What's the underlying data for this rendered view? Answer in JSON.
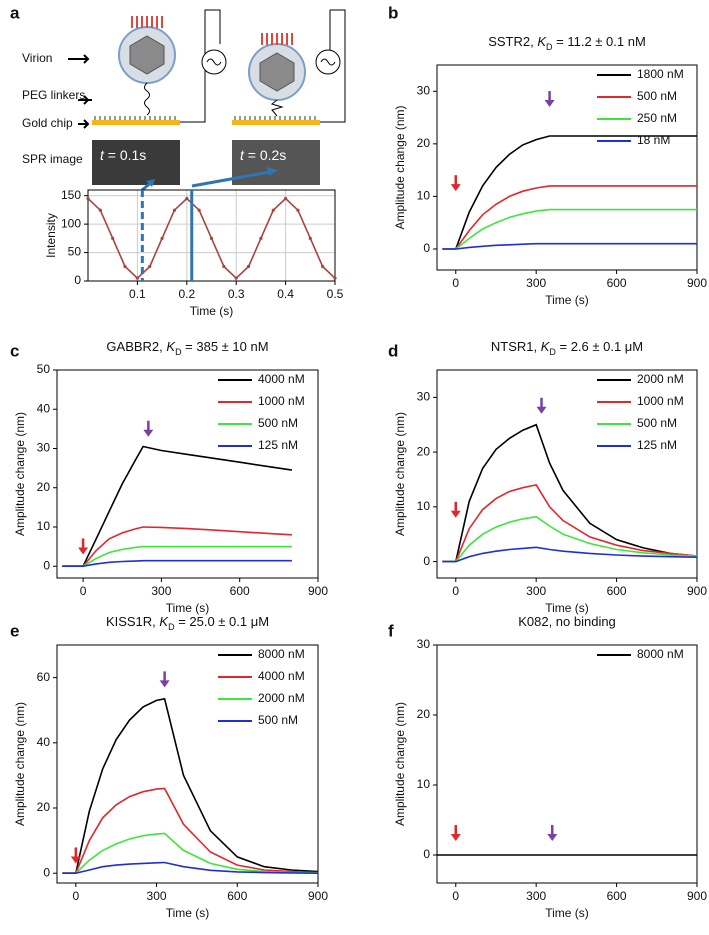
{
  "diagram": {
    "panel": "a",
    "labels": [
      "Virion",
      "PEG linkers",
      "Gold chip",
      "SPR image"
    ],
    "image_labels": [
      [
        "t",
        " = 0.1s"
      ],
      [
        "t",
        " = 0.2s"
      ]
    ]
  },
  "chart_data": [
    {
      "type": "line",
      "xlabel": "Time (s)",
      "ylabel": "Intensity",
      "xlim": [
        0,
        0.5
      ],
      "ylim": [
        0,
        160
      ],
      "xticks": [
        0.1,
        0.2,
        0.3,
        0.4,
        0.5
      ],
      "yticks": [
        0,
        50,
        100,
        150
      ],
      "grid": true,
      "point_markers": true,
      "x": [
        0,
        0.025,
        0.05,
        0.075,
        0.1,
        0.125,
        0.15,
        0.175,
        0.2,
        0.225,
        0.25,
        0.275,
        0.3,
        0.325,
        0.35,
        0.375,
        0.4,
        0.425,
        0.45,
        0.475,
        0.5
      ],
      "series": [
        {
          "color": "#a8443f",
          "values": [
            145,
            124.5,
            75,
            25.5,
            5,
            25.5,
            75,
            124.5,
            145,
            124.5,
            75,
            25.5,
            5,
            25.5,
            75,
            124.5,
            145,
            124.5,
            75,
            25.5,
            5
          ]
        }
      ],
      "markers": [
        {
          "x": 0.11,
          "style": "dashed",
          "color": "#2e75b6"
        },
        {
          "x": 0.21,
          "style": "solid",
          "color": "#2e75b6"
        }
      ]
    },
    {
      "type": "line",
      "panel": "b",
      "title": [
        "SSTR2, ",
        "K",
        "D",
        " = 11.2 ± 0.1 nM"
      ],
      "xlabel": "Time (s)",
      "ylabel": "Amplitude change (nm)",
      "xlim": [
        -70,
        900
      ],
      "ylim": [
        -4,
        35
      ],
      "xticks": [
        0,
        300,
        600,
        900
      ],
      "yticks": [
        0,
        10,
        20,
        30
      ],
      "legend": "upper right",
      "x": [
        -50,
        0,
        50,
        100,
        150,
        200,
        250,
        300,
        350,
        400,
        500,
        600,
        700,
        800,
        900
      ],
      "series": [
        {
          "name": "1800 nM",
          "color": "#000000",
          "values": [
            0,
            0,
            7,
            12,
            15.5,
            18,
            19.8,
            20.8,
            21.5,
            21.5,
            21.5,
            21.5,
            21.5,
            21.5,
            21.5
          ]
        },
        {
          "name": "500 nM",
          "color": "#e3262b",
          "values": [
            0,
            0,
            3.5,
            6.5,
            8.5,
            10,
            11,
            11.6,
            12,
            12,
            12,
            12,
            12,
            12,
            12
          ]
        },
        {
          "name": "250 nM",
          "color": "#3ee63a",
          "values": [
            0,
            0,
            2,
            3.8,
            5,
            6,
            6.7,
            7.2,
            7.5,
            7.5,
            7.5,
            7.5,
            7.5,
            7.5,
            7.5
          ]
        },
        {
          "name": "18 nM",
          "color": "#1f2fd6",
          "values": [
            0,
            0,
            0.3,
            0.5,
            0.7,
            0.8,
            0.9,
            1,
            1,
            1,
            1,
            1,
            1,
            1,
            1
          ]
        }
      ],
      "markers": [
        {
          "x": 0,
          "y": 11,
          "color": "#e3262b"
        },
        {
          "x": 350,
          "y": 27,
          "color": "#7b3fa8"
        }
      ]
    },
    {
      "type": "line",
      "panel": "c",
      "title": [
        "GABBR2, ",
        "K",
        "D",
        " = 385  ± 10 nM"
      ],
      "xlabel": "Time (s)",
      "ylabel": "Amplitude change (nm)",
      "xlim": [
        -100,
        900
      ],
      "ylim": [
        -3,
        50
      ],
      "xticks": [
        0,
        300,
        600,
        900
      ],
      "yticks": [
        0,
        10,
        20,
        30,
        40,
        50
      ],
      "legend": "upper right",
      "x": [
        -80,
        0,
        50,
        100,
        150,
        200,
        230,
        300,
        400,
        500,
        600,
        700,
        800
      ],
      "series": [
        {
          "name": "4000 nM",
          "color": "#000000",
          "values": [
            0,
            0,
            7,
            14,
            21,
            27,
            30.5,
            29.5,
            28.5,
            27.5,
            26.5,
            25.5,
            24.5
          ]
        },
        {
          "name": "1000 nM",
          "color": "#e3262b",
          "values": [
            0,
            0,
            4,
            7,
            8.5,
            9.5,
            10,
            9.9,
            9.6,
            9.2,
            8.8,
            8.4,
            8
          ]
        },
        {
          "name": "500 nM",
          "color": "#3ee63a",
          "values": [
            0,
            0,
            2,
            3.5,
            4.3,
            4.8,
            5,
            5,
            5,
            5,
            5,
            5,
            5
          ]
        },
        {
          "name": "125 nM",
          "color": "#1f2fd6",
          "values": [
            0,
            0,
            0.6,
            1,
            1.2,
            1.3,
            1.4,
            1.4,
            1.4,
            1.4,
            1.4,
            1.4,
            1.4
          ]
        }
      ],
      "markers": [
        {
          "x": 0,
          "y": 3,
          "color": "#e3262b"
        },
        {
          "x": 250,
          "y": 33,
          "color": "#7b3fa8"
        }
      ]
    },
    {
      "type": "line",
      "panel": "d",
      "title": [
        "NTSR1, ",
        "K",
        "D",
        " = 2.6 ± 0.1 μM"
      ],
      "xlabel": "Time (s)",
      "ylabel": "Amplitude change (nm)",
      "xlim": [
        -70,
        900
      ],
      "ylim": [
        -3,
        35
      ],
      "xticks": [
        0,
        300,
        600,
        900
      ],
      "yticks": [
        0,
        10,
        20,
        30
      ],
      "legend": "upper right",
      "x": [
        -50,
        0,
        50,
        100,
        150,
        200,
        250,
        300,
        350,
        400,
        500,
        600,
        700,
        800,
        900
      ],
      "series": [
        {
          "name": "2000 nM",
          "color": "#000000",
          "values": [
            0,
            0,
            11,
            17,
            20.5,
            22.5,
            24,
            25,
            18,
            13,
            7,
            4,
            2.5,
            1.5,
            1
          ]
        },
        {
          "name": "1000 nM",
          "color": "#e3262b",
          "values": [
            0,
            0,
            6,
            9.5,
            11.5,
            12.8,
            13.5,
            14,
            10,
            7.5,
            4.5,
            3,
            2,
            1.5,
            1
          ]
        },
        {
          "name": "500 nM",
          "color": "#3ee63a",
          "values": [
            0,
            0,
            3,
            5,
            6.3,
            7.2,
            7.8,
            8.2,
            6.5,
            5,
            3.3,
            2.2,
            1.6,
            1.2,
            1
          ]
        },
        {
          "name": "125 nM",
          "color": "#1f2fd6",
          "values": [
            0,
            0,
            0.9,
            1.5,
            1.9,
            2.2,
            2.4,
            2.6,
            2.2,
            1.9,
            1.5,
            1.2,
            1,
            0.9,
            0.8
          ]
        }
      ],
      "markers": [
        {
          "x": 0,
          "y": 8,
          "color": "#e3262b"
        },
        {
          "x": 320,
          "y": 27,
          "color": "#7b3fa8"
        }
      ]
    },
    {
      "type": "line",
      "panel": "e",
      "title": [
        "KISS1R, ",
        "K",
        "D",
        " = 25.0 ± 0.1 μM"
      ],
      "xlabel": "Time (s)",
      "ylabel": "Amplitude change (nm)",
      "xlim": [
        -70,
        900
      ],
      "ylim": [
        -3,
        70
      ],
      "xticks": [
        0,
        300,
        600,
        900
      ],
      "yticks": [
        0,
        20,
        40,
        60
      ],
      "legend": "upper right",
      "x": [
        -50,
        0,
        50,
        100,
        150,
        200,
        250,
        300,
        330,
        400,
        500,
        600,
        700,
        800,
        900
      ],
      "series": [
        {
          "name": "8000 nM",
          "color": "#000000",
          "values": [
            0,
            0,
            19,
            32,
            41,
            47,
            51,
            53,
            53.5,
            30,
            13,
            5,
            2,
            1,
            0.5
          ]
        },
        {
          "name": "4000 nM",
          "color": "#e3262b",
          "values": [
            0,
            0,
            10,
            17,
            21,
            23.5,
            25,
            25.8,
            26,
            15,
            6.5,
            2.5,
            1,
            0.5,
            0.2
          ]
        },
        {
          "name": "2000 nM",
          "color": "#3ee63a",
          "values": [
            0,
            0,
            4,
            7,
            9,
            10.5,
            11.5,
            12,
            12.2,
            7,
            3,
            1.2,
            0.5,
            0.2,
            0.1
          ]
        },
        {
          "name": "500 nM",
          "color": "#1f2fd6",
          "values": [
            0,
            0,
            1,
            2,
            2.5,
            2.8,
            3,
            3.2,
            3.3,
            2,
            0.9,
            0.4,
            0.2,
            0.1,
            0
          ]
        }
      ],
      "markers": [
        {
          "x": 0,
          "y": 3,
          "color": "#e3262b"
        },
        {
          "x": 330,
          "y": 57,
          "color": "#7b3fa8"
        }
      ]
    },
    {
      "type": "line",
      "panel": "f",
      "title": [
        "K082, no binding"
      ],
      "xlabel": "Time (s)",
      "ylabel": "Amplitude change (nm)",
      "xlim": [
        -70,
        900
      ],
      "ylim": [
        -4,
        30
      ],
      "xticks": [
        0,
        300,
        600,
        900
      ],
      "yticks": [
        0,
        10,
        20,
        30
      ],
      "legend": "upper right",
      "x": [
        -70,
        900
      ],
      "series": [
        {
          "name": "8000 nM",
          "color": "#000000",
          "values": [
            0,
            0
          ]
        }
      ],
      "markers": [
        {
          "x": 0,
          "y": 2,
          "color": "#e3262b"
        },
        {
          "x": 360,
          "y": 2,
          "color": "#7b3fa8"
        }
      ]
    }
  ]
}
